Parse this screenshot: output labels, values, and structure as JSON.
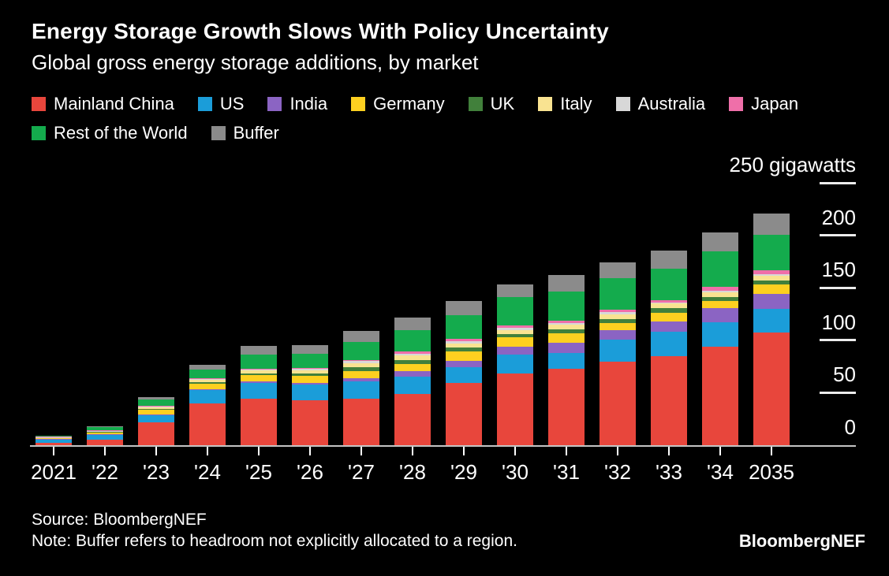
{
  "page": {
    "background": "#000000",
    "text_color": "#ffffff",
    "axis_line_color": "#c4c4c4",
    "tick_color": "#ececec"
  },
  "chart_data": {
    "type": "bar",
    "stacked": true,
    "title": "Energy Storage Growth Slows With Policy Uncertainty",
    "subtitle": "Global gross energy storage additions, by market",
    "categories": [
      "2021",
      "'22",
      "'23",
      "'24",
      "'25",
      "'26",
      "'27",
      "'28",
      "'29",
      "'30",
      "'31",
      "'32",
      "'33",
      "'34",
      "2035"
    ],
    "series": [
      {
        "name": "Mainland China",
        "color": "#e8463c",
        "values": [
          2.5,
          5.3,
          22,
          40,
          44,
          42.5,
          44.4,
          48.9,
          59.4,
          68,
          72.5,
          79.5,
          84.5,
          93.5,
          107.5
        ]
      },
      {
        "name": "US",
        "color": "#1b9dd9",
        "values": [
          3.5,
          5.2,
          7,
          13,
          15.5,
          15,
          16.5,
          16.3,
          15,
          18,
          15,
          20.8,
          23.3,
          23.8,
          22.6
        ]
      },
      {
        "name": "India",
        "color": "#8b64c3",
        "values": [
          0.2,
          0.2,
          0.5,
          0.5,
          1,
          2,
          3,
          5,
          5.8,
          8,
          10,
          9.3,
          10,
          13,
          13.8
        ]
      },
      {
        "name": "Germany",
        "color": "#fdd020",
        "values": [
          0.8,
          1.4,
          4,
          5,
          6,
          6.5,
          7,
          7.5,
          8.8,
          8.5,
          8.8,
          7,
          8.5,
          7,
          9.5
        ]
      },
      {
        "name": "UK",
        "color": "#41803b",
        "values": [
          0.2,
          0.7,
          1,
          1.5,
          2,
          2.2,
          3.5,
          3.3,
          3.8,
          3.5,
          4.2,
          3.5,
          4,
          3.8,
          3.8
        ]
      },
      {
        "name": "Italy",
        "color": "#f9e391",
        "values": [
          0.3,
          0.7,
          2,
          2.5,
          3,
          3.2,
          4,
          4.3,
          4.3,
          3.5,
          4,
          4.5,
          4.5,
          4.8,
          4.5
        ]
      },
      {
        "name": "Australia",
        "color": "#d8d8d8",
        "values": [
          0.3,
          0.3,
          0.5,
          0.7,
          1,
          1.2,
          1.8,
          1.8,
          2,
          2,
          1.7,
          2,
          1.2,
          1.5,
          1.5
        ]
      },
      {
        "name": "Japan",
        "color": "#ef6fa9",
        "values": [
          0.2,
          0.2,
          0.5,
          0.3,
          0.5,
          0.8,
          1.2,
          2.5,
          2.5,
          2.5,
          2.5,
          2.5,
          2.5,
          3.2,
          3.3
        ]
      },
      {
        "name": "Rest of the World",
        "color": "#14ab4d",
        "values": [
          1.0,
          3.5,
          6,
          8.5,
          13,
          14,
          16.8,
          20,
          22.6,
          26.8,
          27.6,
          30,
          30,
          33.8,
          34.3
        ]
      },
      {
        "name": "Buffer",
        "color": "#8b8b8b",
        "values": [
          0,
          0.8,
          2.5,
          4.5,
          8.5,
          8.1,
          10.3,
          12,
          13,
          12.6,
          16,
          15,
          17,
          18.3,
          20
        ]
      }
    ],
    "legend_rows": [
      [
        0,
        1,
        2,
        3,
        4,
        5,
        6,
        7
      ],
      [
        8,
        9
      ]
    ],
    "y_axis": {
      "side": "right",
      "ylim": [
        0,
        250
      ],
      "ticks": [
        {
          "value": 0,
          "label": "0",
          "dash": false
        },
        {
          "value": 50,
          "label": "50",
          "dash": true
        },
        {
          "value": 100,
          "label": "100",
          "dash": true
        },
        {
          "value": 150,
          "label": "150",
          "dash": true
        },
        {
          "value": 200,
          "label": "200",
          "dash": true
        },
        {
          "value": 250,
          "label": "250 gigawatts",
          "dash": true
        }
      ]
    },
    "gridlines": false,
    "legend_position": "top"
  },
  "footer": {
    "source": "Source: BloombergNEF",
    "note": "Note: Buffer refers to headroom not explicitly allocated to a region.",
    "brand": "BloombergNEF"
  }
}
